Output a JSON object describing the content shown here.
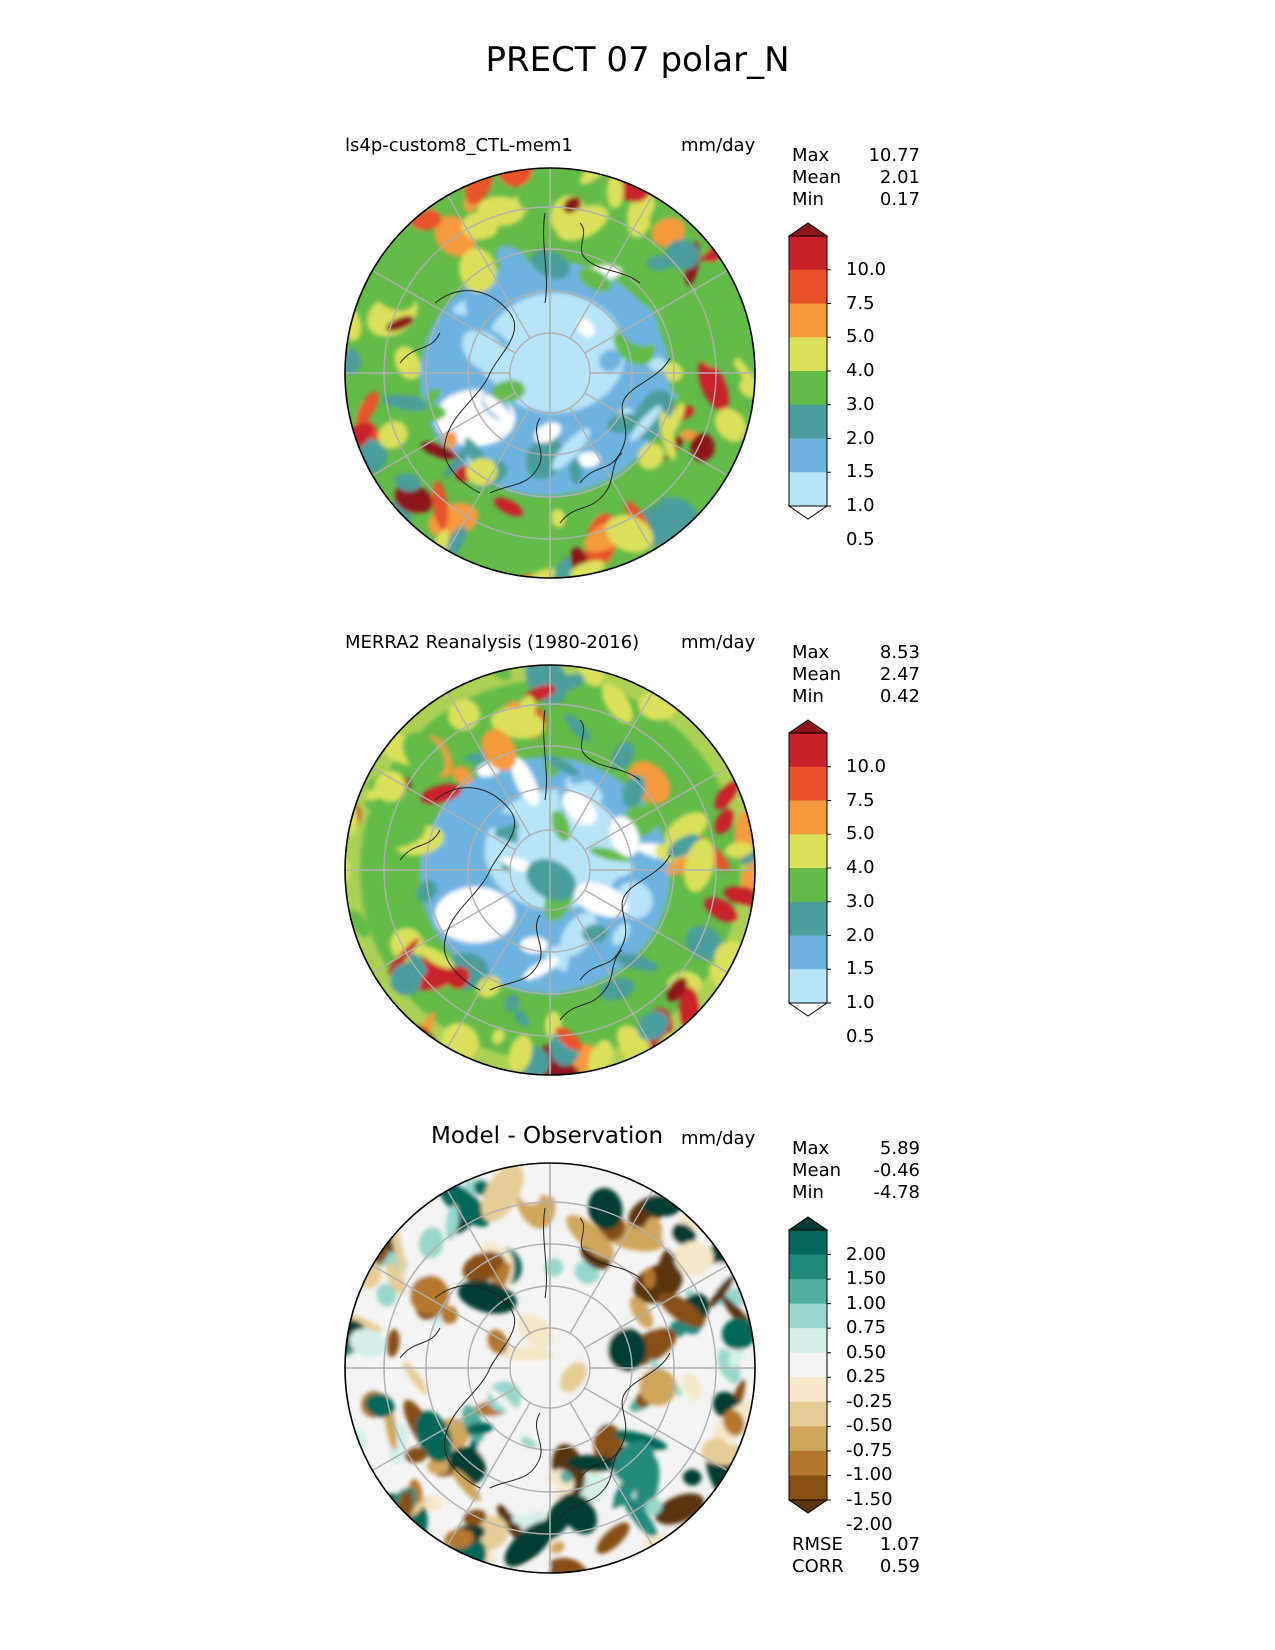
{
  "title": "PRECT 07 polar_N",
  "panels": [
    {
      "id": "test",
      "title": "ls4p-custom8_CTL-mem1",
      "units": "mm/day",
      "stats": {
        "max_label": "Max",
        "max": "10.77",
        "mean_label": "Mean",
        "mean": "2.01",
        "min_label": "Min",
        "min": "0.17"
      },
      "colorbar_levels": [
        "10.0",
        "7.5",
        "5.0",
        "4.0",
        "3.0",
        "2.0",
        "1.5",
        "1.0",
        "0.5"
      ]
    },
    {
      "id": "ref",
      "title": "MERRA2 Reanalysis (1980-2016)",
      "units": "mm/day",
      "stats": {
        "max_label": "Max",
        "max": "8.53",
        "mean_label": "Mean",
        "mean": "2.47",
        "min_label": "Min",
        "min": "0.42"
      },
      "colorbar_levels": [
        "10.0",
        "7.5",
        "5.0",
        "4.0",
        "3.0",
        "2.0",
        "1.5",
        "1.0",
        "0.5"
      ]
    },
    {
      "id": "diff",
      "title": "Model - Observation",
      "units": "mm/day",
      "stats": {
        "max_label": "Max",
        "max": "5.89",
        "mean_label": "Mean",
        "mean": "-0.46",
        "min_label": "Min",
        "min": "-4.78"
      },
      "colorbar_levels": [
        "2.00",
        "1.50",
        "1.00",
        "0.75",
        "0.50",
        "0.25",
        "-0.25",
        "-0.50",
        "-0.75",
        "-1.00",
        "-1.50",
        "-2.00"
      ],
      "metrics": {
        "rmse_label": "RMSE",
        "rmse": "1.07",
        "corr_label": "CORR",
        "corr": "0.59"
      }
    }
  ],
  "colors": {
    "prect_scale": [
      "#ffffff",
      "#b8e4f8",
      "#6db3e0",
      "#4a9e9c",
      "#63bb48",
      "#dbe05a",
      "#f59a3c",
      "#e8522a",
      "#c9212a",
      "#8c161c"
    ],
    "diff_scale": [
      "#5a3510",
      "#874f12",
      "#b5772d",
      "#d0a55c",
      "#e6cd96",
      "#f5e7c8",
      "#f4f4f4",
      "#d3efe9",
      "#97d7cb",
      "#52ae9e",
      "#218a7b",
      "#046759",
      "#003c30"
    ],
    "grid": "#b0b0b0",
    "coast": "#222222"
  }
}
